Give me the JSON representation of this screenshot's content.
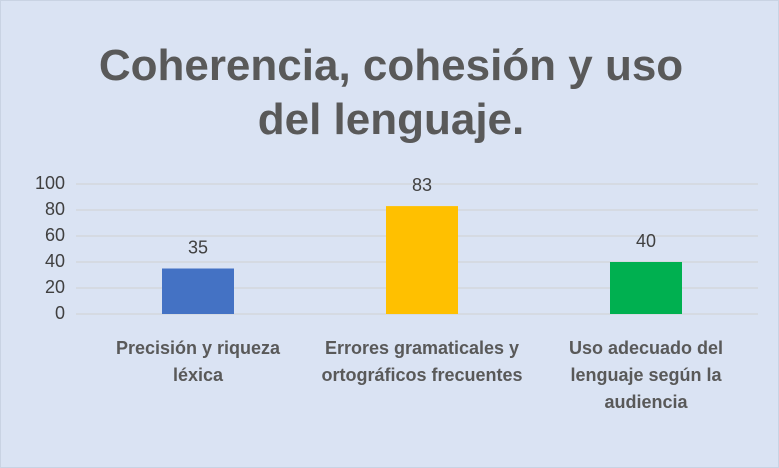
{
  "chart_data": {
    "type": "bar",
    "title": "Coherencia, cohesión y uso del lenguaje.",
    "categories": [
      "Precisión y riqueza léxica",
      "Errores gramaticales y ortográficos frecuentes",
      "Uso adecuado del lenguaje según la audiencia"
    ],
    "values": [
      35,
      83,
      40
    ],
    "colors": [
      "#4472c4",
      "#ffc000",
      "#00b050"
    ],
    "ylim": [
      0,
      100
    ],
    "yticks": [
      0,
      20,
      40,
      60,
      80,
      100
    ],
    "grid": true
  }
}
